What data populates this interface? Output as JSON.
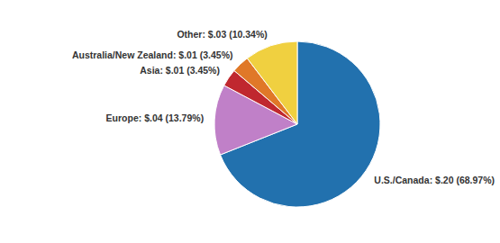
{
  "chart_data": {
    "type": "pie",
    "categories": [
      "U.S./Canada: $.20 (68.97%)",
      "Europe: $.04 (13.79%)",
      "Asia: $.01 (3.45%)",
      "Australia/New Zealand: $.01 (3.45%)",
      "Other: $.03 (10.34%)"
    ],
    "values": [
      68.97,
      13.79,
      3.45,
      3.45,
      10.34
    ],
    "colors": [
      "#2271ae",
      "#c080c8",
      "#c0282f",
      "#e07828",
      "#f0d040"
    ]
  }
}
